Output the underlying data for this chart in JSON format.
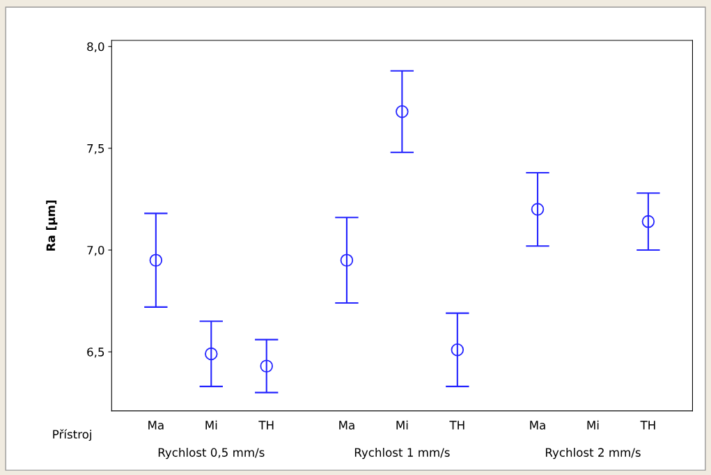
{
  "chart_data": {
    "type": "scatter",
    "ylabel": "Ra [µm]",
    "categories": [
      "Ma",
      "Mi",
      "TH",
      "Ma",
      "Mi",
      "TH",
      "Ma",
      "Mi",
      "TH"
    ],
    "values": [
      6.95,
      6.49,
      6.43,
      6.95,
      7.68,
      6.51,
      7.2,
      null,
      7.14
    ],
    "errors": [
      0.23,
      0.16,
      0.13,
      0.21,
      0.2,
      0.18,
      0.18,
      null,
      0.14
    ],
    "color": "#2323ff",
    "marker": "circle",
    "ylim": [
      6.21,
      8.03
    ],
    "yticks": [
      {
        "value": 6.5,
        "label": "6,5"
      },
      {
        "value": 7.0,
        "label": "7,0"
      },
      {
        "value": 7.5,
        "label": "7,5"
      },
      {
        "value": 8.0,
        "label": "8,0"
      }
    ],
    "grid": false,
    "legend": false,
    "annotations": [
      "Přístroj",
      "Rychlost 0,5 mm/s",
      "Rychlost 1 mm/s",
      "Rychlost 2 mm/s"
    ]
  }
}
